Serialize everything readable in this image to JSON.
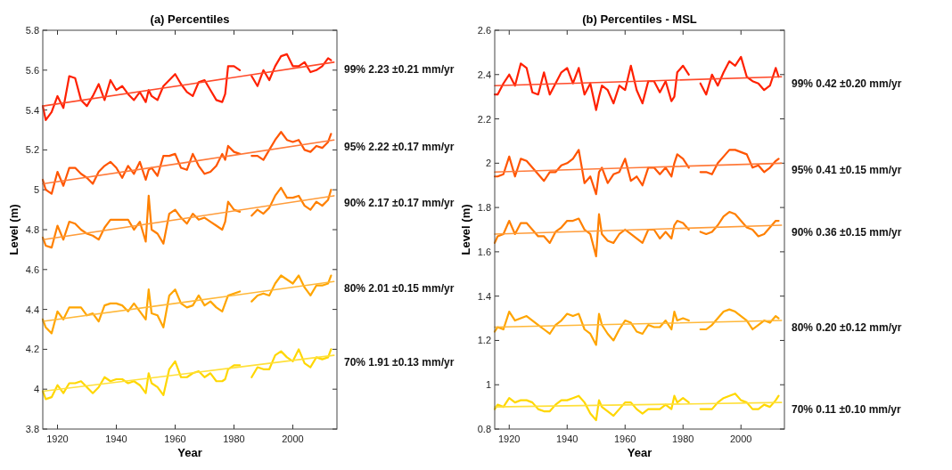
{
  "chart_data": [
    {
      "type": "line",
      "title": "(a) Percentiles",
      "xlabel": "Year",
      "ylabel": "Level (m)",
      "xlim": [
        1915,
        2015
      ],
      "xticks": [
        1920,
        1940,
        1960,
        1980,
        2000
      ],
      "ylim": [
        3.8,
        5.8
      ],
      "yticks": [
        3.8,
        4,
        4.2,
        4.4,
        4.6,
        4.8,
        5,
        5.2,
        5.4,
        5.6,
        5.8
      ],
      "x": [
        1915,
        1916,
        1918,
        1920,
        1922,
        1924,
        1926,
        1928,
        1930,
        1932,
        1934,
        1936,
        1938,
        1940,
        1942,
        1944,
        1946,
        1948,
        1950,
        1951,
        1952,
        1954,
        1956,
        1958,
        1960,
        1962,
        1964,
        1966,
        1968,
        1970,
        1972,
        1974,
        1976,
        1977,
        1978,
        1980,
        1982,
        1984,
        1986,
        1988,
        1990,
        1992,
        1994,
        1996,
        1998,
        2000,
        2002,
        2004,
        2006,
        2008,
        2010,
        2012,
        2013
      ],
      "annotations": [
        "99%  2.23 ±0.21 mm/yr",
        "95%  2.22 ±0.17 mm/yr",
        "90%  2.17 ±0.17 mm/yr",
        "80%  2.01 ±0.15 mm/yr",
        "70%  1.91 ±0.13 mm/yr"
      ],
      "series": [
        {
          "color": "#ff2000",
          "values": [
            5.42,
            5.35,
            5.39,
            5.47,
            5.41,
            5.57,
            5.56,
            5.45,
            5.42,
            5.47,
            5.53,
            5.45,
            5.55,
            5.5,
            5.52,
            5.48,
            5.45,
            5.49,
            5.44,
            5.5,
            5.47,
            5.45,
            5.52,
            5.55,
            5.58,
            5.53,
            5.49,
            5.47,
            5.54,
            5.55,
            5.5,
            5.45,
            5.44,
            5.48,
            5.62,
            5.62,
            5.6,
            null,
            5.57,
            5.52,
            5.6,
            5.55,
            5.62,
            5.67,
            5.68,
            5.62,
            5.62,
            5.64,
            5.59,
            5.6,
            5.62,
            5.66,
            5.65
          ]
        },
        {
          "color": "#ff5500",
          "values": [
            5.05,
            5.0,
            4.98,
            5.09,
            5.02,
            5.11,
            5.11,
            5.08,
            5.06,
            5.03,
            5.09,
            5.12,
            5.14,
            5.11,
            5.06,
            5.12,
            5.08,
            5.14,
            5.05,
            5.1,
            5.11,
            5.07,
            5.17,
            5.17,
            5.18,
            5.11,
            5.1,
            5.18,
            5.12,
            5.08,
            5.09,
            5.12,
            5.18,
            5.15,
            5.22,
            5.19,
            5.18,
            null,
            5.17,
            5.17,
            5.15,
            5.2,
            5.25,
            5.29,
            5.25,
            5.24,
            5.25,
            5.2,
            5.19,
            5.22,
            5.21,
            5.24,
            5.28
          ]
        },
        {
          "color": "#ff8000",
          "values": [
            4.76,
            4.72,
            4.71,
            4.82,
            4.75,
            4.84,
            4.83,
            4.8,
            4.78,
            4.77,
            4.75,
            4.81,
            4.85,
            4.85,
            4.85,
            4.85,
            4.8,
            4.84,
            4.74,
            4.97,
            4.8,
            4.78,
            4.73,
            4.88,
            4.9,
            4.86,
            4.83,
            4.88,
            4.85,
            4.86,
            4.84,
            4.82,
            4.8,
            4.84,
            4.94,
            4.9,
            4.89,
            null,
            4.87,
            4.9,
            4.88,
            4.91,
            4.97,
            5.01,
            4.96,
            4.96,
            4.97,
            4.92,
            4.9,
            4.94,
            4.92,
            4.95,
            5.0
          ]
        },
        {
          "color": "#ffa500",
          "values": [
            4.35,
            4.31,
            4.28,
            4.39,
            4.35,
            4.41,
            4.41,
            4.41,
            4.37,
            4.38,
            4.34,
            4.42,
            4.43,
            4.43,
            4.42,
            4.39,
            4.43,
            4.39,
            4.35,
            4.5,
            4.38,
            4.37,
            4.31,
            4.47,
            4.5,
            4.43,
            4.41,
            4.42,
            4.47,
            4.42,
            4.44,
            4.41,
            4.39,
            4.43,
            4.47,
            4.48,
            4.49,
            null,
            4.44,
            4.47,
            4.48,
            4.47,
            4.53,
            4.57,
            4.55,
            4.53,
            4.57,
            4.51,
            4.47,
            4.52,
            4.52,
            4.53,
            4.57
          ]
        },
        {
          "color": "#ffd700",
          "values": [
            3.99,
            3.95,
            3.96,
            4.02,
            3.98,
            4.03,
            4.03,
            4.04,
            4.01,
            3.98,
            4.01,
            4.06,
            4.04,
            4.05,
            4.05,
            4.03,
            4.04,
            4.02,
            3.98,
            4.08,
            4.03,
            4.01,
            3.97,
            4.1,
            4.14,
            4.06,
            4.06,
            4.08,
            4.09,
            4.06,
            4.08,
            4.04,
            4.04,
            4.05,
            4.1,
            4.12,
            4.12,
            null,
            4.06,
            4.11,
            4.1,
            4.1,
            4.17,
            4.19,
            4.16,
            4.14,
            4.2,
            4.13,
            4.11,
            4.16,
            4.15,
            4.16,
            4.2
          ]
        },
        {
          "type": "line",
          "color": "#ff4a2a",
          "x": [
            1915,
            1965,
            2014
          ],
          "values": [
            5.42,
            5.53,
            5.64
          ]
        },
        {
          "type": "line",
          "color": "#ff7a3a",
          "x": [
            1915,
            1965,
            2014
          ],
          "values": [
            5.03,
            5.14,
            5.25
          ]
        },
        {
          "type": "line",
          "color": "#ff9c3a",
          "x": [
            1915,
            1965,
            2014
          ],
          "values": [
            4.75,
            4.86,
            4.97
          ]
        },
        {
          "type": "line",
          "color": "#ffb83a",
          "x": [
            1915,
            1965,
            2014
          ],
          "values": [
            4.34,
            4.44,
            4.54
          ]
        },
        {
          "type": "line",
          "color": "#ffe03a",
          "x": [
            1915,
            1965,
            2014
          ],
          "values": [
            3.99,
            4.08,
            4.17
          ]
        }
      ]
    },
    {
      "type": "line",
      "title": "(b) Percentiles - MSL",
      "xlabel": "Year",
      "ylabel": "Level (m)",
      "xlim": [
        1915,
        2015
      ],
      "xticks": [
        1920,
        1940,
        1960,
        1980,
        2000
      ],
      "ylim": [
        0.8,
        2.6
      ],
      "yticks": [
        0.8,
        1,
        1.2,
        1.4,
        1.6,
        1.8,
        2,
        2.2,
        2.4,
        2.6
      ],
      "x": [
        1915,
        1916,
        1918,
        1920,
        1922,
        1924,
        1926,
        1928,
        1930,
        1932,
        1934,
        1936,
        1938,
        1940,
        1942,
        1944,
        1946,
        1948,
        1950,
        1951,
        1952,
        1954,
        1956,
        1958,
        1960,
        1962,
        1964,
        1966,
        1968,
        1970,
        1972,
        1974,
        1976,
        1977,
        1978,
        1980,
        1982,
        1984,
        1986,
        1988,
        1990,
        1992,
        1994,
        1996,
        1998,
        2000,
        2002,
        2004,
        2006,
        2008,
        2010,
        2012,
        2013
      ],
      "annotations": [
        "99%  0.42 ±0.20 mm/yr",
        "95%  0.41 ±0.15 mm/yr",
        "90%  0.36 ±0.15 mm/yr",
        "80%  0.20 ±0.12 mm/yr",
        "70%  0.11 ±0.10 mm/yr"
      ],
      "series": [
        {
          "color": "#ff2000",
          "values": [
            2.31,
            2.31,
            2.36,
            2.4,
            2.35,
            2.45,
            2.43,
            2.32,
            2.31,
            2.41,
            2.31,
            2.36,
            2.41,
            2.43,
            2.36,
            2.43,
            2.31,
            2.36,
            2.24,
            2.3,
            2.35,
            2.33,
            2.27,
            2.35,
            2.33,
            2.44,
            2.33,
            2.27,
            2.37,
            2.37,
            2.32,
            2.37,
            2.28,
            2.3,
            2.41,
            2.44,
            2.4,
            null,
            2.36,
            2.31,
            2.4,
            2.35,
            2.41,
            2.46,
            2.44,
            2.48,
            2.39,
            2.37,
            2.36,
            2.33,
            2.35,
            2.43,
            2.39
          ]
        },
        {
          "color": "#ff5500",
          "values": [
            1.94,
            1.94,
            1.95,
            2.03,
            1.94,
            2.02,
            2.01,
            1.98,
            1.95,
            1.92,
            1.96,
            1.96,
            1.99,
            2.0,
            2.02,
            2.06,
            1.91,
            1.94,
            1.86,
            1.96,
            1.98,
            1.91,
            1.95,
            1.96,
            2.02,
            1.92,
            1.94,
            1.9,
            1.98,
            1.98,
            1.95,
            1.98,
            1.94,
            2.0,
            2.04,
            2.02,
            1.98,
            null,
            1.96,
            1.96,
            1.95,
            2.0,
            2.03,
            2.06,
            2.06,
            2.05,
            2.04,
            1.98,
            1.99,
            1.96,
            1.98,
            2.01,
            2.02
          ]
        },
        {
          "color": "#ff8000",
          "values": [
            1.64,
            1.67,
            1.68,
            1.74,
            1.68,
            1.73,
            1.73,
            1.7,
            1.67,
            1.67,
            1.64,
            1.69,
            1.71,
            1.74,
            1.74,
            1.75,
            1.7,
            1.68,
            1.58,
            1.77,
            1.68,
            1.65,
            1.64,
            1.68,
            1.7,
            1.68,
            1.66,
            1.64,
            1.7,
            1.7,
            1.66,
            1.69,
            1.66,
            1.72,
            1.74,
            1.73,
            1.7,
            null,
            1.69,
            1.68,
            1.69,
            1.72,
            1.76,
            1.78,
            1.77,
            1.74,
            1.71,
            1.7,
            1.67,
            1.68,
            1.71,
            1.74,
            1.74
          ]
        },
        {
          "color": "#ffa500",
          "values": [
            1.24,
            1.26,
            1.25,
            1.33,
            1.29,
            1.3,
            1.31,
            1.29,
            1.27,
            1.25,
            1.23,
            1.27,
            1.29,
            1.32,
            1.31,
            1.32,
            1.25,
            1.23,
            1.18,
            1.32,
            1.27,
            1.23,
            1.2,
            1.25,
            1.29,
            1.28,
            1.24,
            1.23,
            1.27,
            1.26,
            1.26,
            1.29,
            1.25,
            1.33,
            1.29,
            1.3,
            1.29,
            null,
            1.25,
            1.25,
            1.27,
            1.3,
            1.33,
            1.34,
            1.33,
            1.31,
            1.29,
            1.25,
            1.27,
            1.29,
            1.28,
            1.31,
            1.3
          ]
        },
        {
          "color": "#ffd700",
          "values": [
            0.89,
            0.91,
            0.9,
            0.94,
            0.92,
            0.93,
            0.93,
            0.92,
            0.89,
            0.88,
            0.88,
            0.91,
            0.93,
            0.93,
            0.94,
            0.95,
            0.92,
            0.87,
            0.84,
            0.93,
            0.9,
            0.88,
            0.86,
            0.89,
            0.92,
            0.92,
            0.89,
            0.87,
            0.89,
            0.89,
            0.89,
            0.91,
            0.89,
            0.95,
            0.92,
            0.94,
            0.92,
            null,
            0.89,
            0.89,
            0.89,
            0.92,
            0.94,
            0.95,
            0.96,
            0.93,
            0.92,
            0.89,
            0.89,
            0.91,
            0.9,
            0.93,
            0.95
          ]
        },
        {
          "type": "line",
          "color": "#ff4a2a",
          "x": [
            1915,
            1965,
            2014
          ],
          "values": [
            2.35,
            2.37,
            2.39
          ]
        },
        {
          "type": "line",
          "color": "#ff7a3a",
          "x": [
            1915,
            1965,
            2014
          ],
          "values": [
            1.96,
            1.98,
            2.0
          ]
        },
        {
          "type": "line",
          "color": "#ff9c3a",
          "x": [
            1915,
            1965,
            2014
          ],
          "values": [
            1.68,
            1.7,
            1.72
          ]
        },
        {
          "type": "line",
          "color": "#ffb83a",
          "x": [
            1915,
            1965,
            2014
          ],
          "values": [
            1.26,
            1.275,
            1.29
          ]
        },
        {
          "type": "line",
          "color": "#ffe03a",
          "x": [
            1915,
            1965,
            2014
          ],
          "values": [
            0.9,
            0.91,
            0.92
          ]
        }
      ]
    }
  ]
}
